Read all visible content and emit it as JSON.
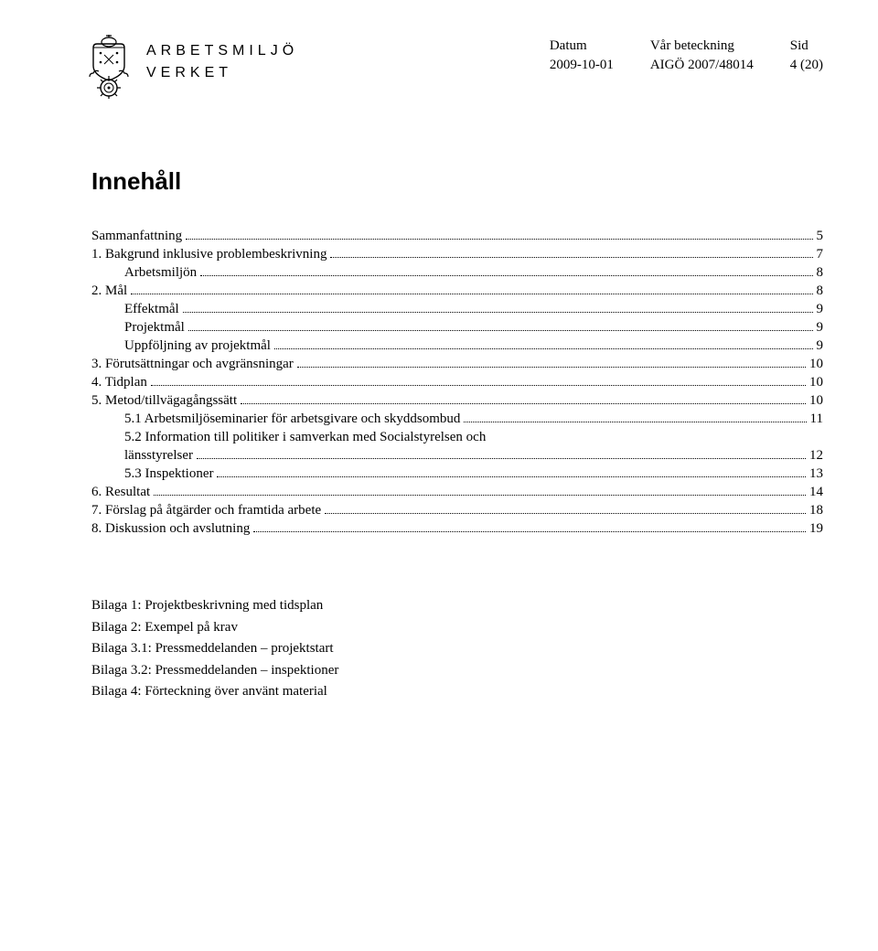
{
  "header": {
    "org_name_line1": "ARBETSMILJÖ",
    "org_name_line2": "VERKET",
    "datum_label": "Datum",
    "datum_value": "2009-10-01",
    "beteckning_label": "Vår beteckning",
    "beteckning_value": "AIGÖ 2007/48014",
    "sid_label": "Sid",
    "sid_value": "4 (20)"
  },
  "title": "Innehåll",
  "toc": [
    {
      "text": "Sammanfattning",
      "page": "5",
      "indent": 0
    },
    {
      "text": "1. Bakgrund inklusive problembeskrivning",
      "page": "7",
      "indent": 0
    },
    {
      "text": "Arbetsmiljön",
      "page": "8",
      "indent": 1
    },
    {
      "text": "2. Mål",
      "page": "8",
      "indent": 0
    },
    {
      "text": "Effektmål",
      "page": "9",
      "indent": 1
    },
    {
      "text": "Projektmål",
      "page": "9",
      "indent": 1
    },
    {
      "text": "Uppföljning av projektmål",
      "page": "9",
      "indent": 1
    },
    {
      "text": "3. Förutsättningar och avgränsningar",
      "page": "10",
      "indent": 0
    },
    {
      "text": "4. Tidplan",
      "page": "10",
      "indent": 0
    },
    {
      "text": "5. Metod/tillvägagångssätt",
      "page": "10",
      "indent": 0
    },
    {
      "text": "5.1 Arbetsmiljöseminarier för arbetsgivare och skyddsombud",
      "page": "11",
      "indent": 2
    },
    {
      "text": "5.2 Information till politiker i samverkan med Socialstyrelsen och",
      "page": null,
      "indent": 2,
      "continuation": true
    },
    {
      "text": "länsstyrelser",
      "page": "12",
      "indent": 2,
      "continuation_end": true
    },
    {
      "text": "5.3 Inspektioner",
      "page": "13",
      "indent": 2
    },
    {
      "text": "6. Resultat",
      "page": "14",
      "indent": 0
    },
    {
      "text": "7. Förslag på åtgärder och framtida arbete",
      "page": "18",
      "indent": 0
    },
    {
      "text": "8. Diskussion och avslutning",
      "page": "19",
      "indent": 0
    }
  ],
  "bilagor": [
    "Bilaga 1: Projektbeskrivning med tidsplan",
    "Bilaga 2: Exempel på krav",
    "Bilaga 3.1: Pressmeddelanden – projektstart",
    "Bilaga 3.2: Pressmeddelanden – inspektioner",
    "Bilaga 4: Förteckning över använt material"
  ],
  "colors": {
    "text": "#000000",
    "background": "#ffffff"
  }
}
